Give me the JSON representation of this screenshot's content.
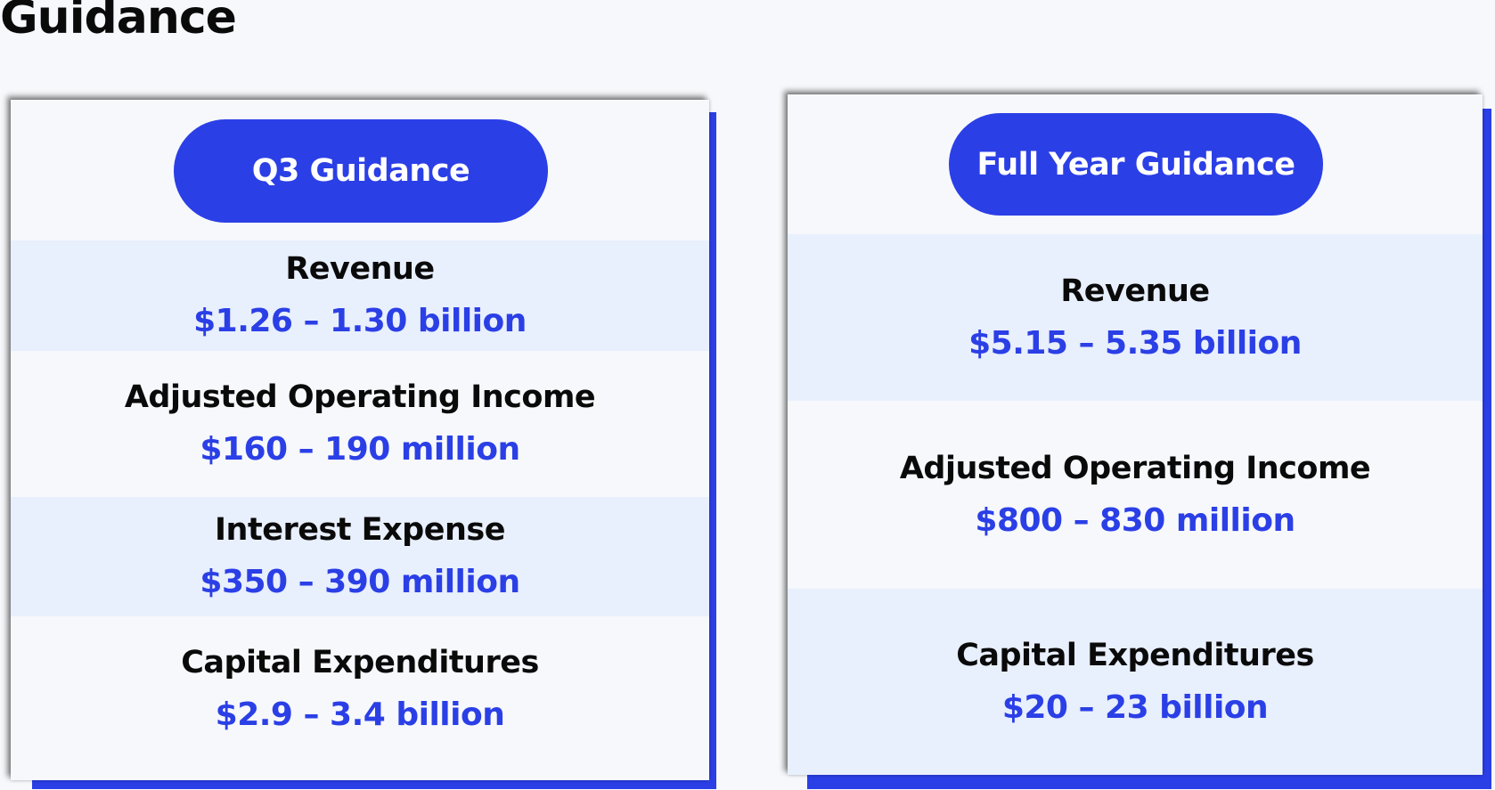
{
  "page": {
    "title": "Guidance"
  },
  "q3": {
    "header": "Q3 Guidance",
    "rows": [
      {
        "label": "Revenue",
        "value": "$1.26 – 1.30 billion"
      },
      {
        "label": "Adjusted Operating Income",
        "value": "$160 – 190 million"
      },
      {
        "label": "Interest Expense",
        "value": "$350 – 390 million"
      },
      {
        "label": "Capital Expenditures",
        "value": "$2.9 – 3.4 billion"
      }
    ]
  },
  "full_year": {
    "header": "Full Year Guidance",
    "rows": [
      {
        "label": "Revenue",
        "value": "$5.15 – 5.35 billion"
      },
      {
        "label": "Adjusted Operating Income",
        "value": "$800 – 830 million"
      },
      {
        "label": "Capital Expenditures",
        "value": "$20 – 23 billion"
      }
    ]
  },
  "colors": {
    "accent": "#2b3fe6",
    "row_shade": "#e8effd",
    "background": "#f6f8fb"
  }
}
